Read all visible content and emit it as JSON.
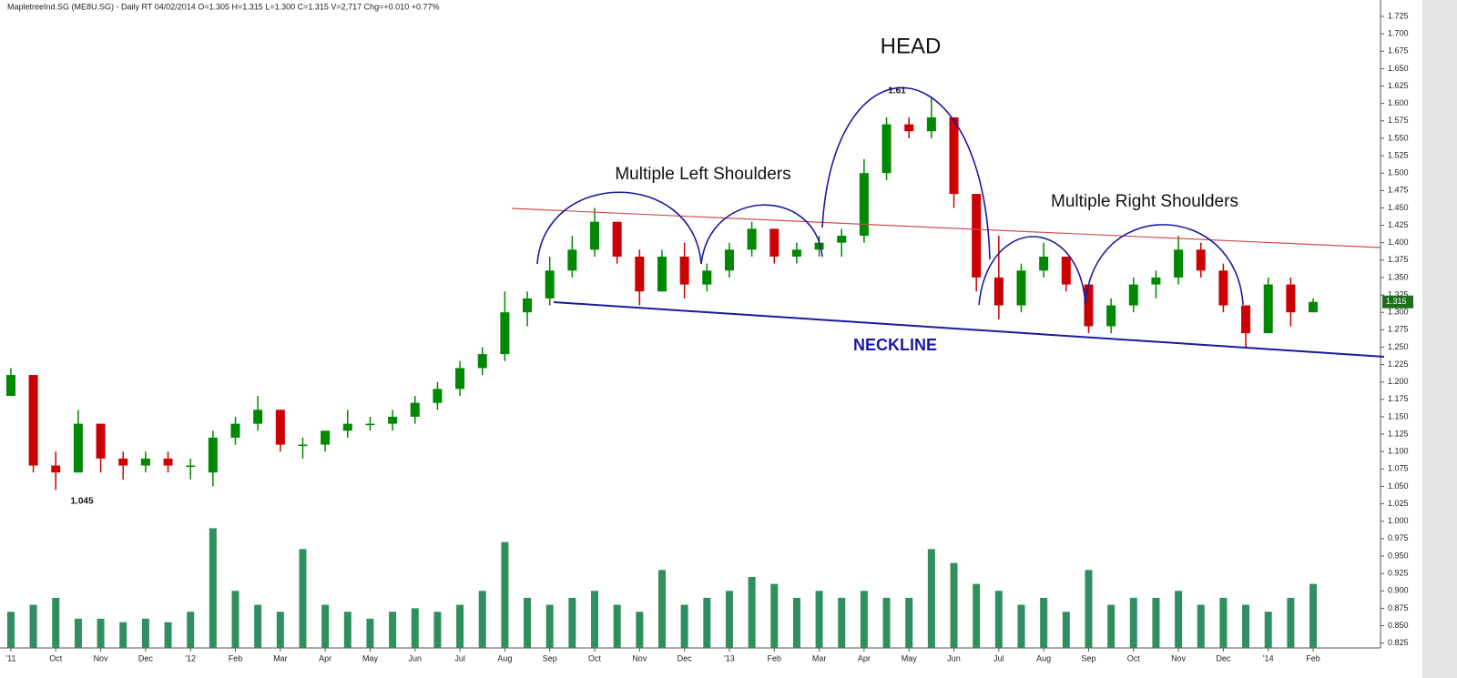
{
  "chart_data": {
    "type": "candlestick",
    "title": "MapletreeInd.SG (ME8U.SG) - Daily RT  04/02/2014   O=1.305   H=1.315   L=1.300   C=1.315   V=2,717   Chg=+0.010   +0.77%",
    "x": [
      0,
      0.5,
      1,
      1.5,
      2,
      2.5,
      3,
      3.5,
      4,
      4.5,
      5,
      5.5,
      6,
      6.5,
      7,
      7.5,
      8,
      8.5,
      9,
      9.5,
      10,
      10.5,
      11,
      11.5,
      12,
      12.5,
      13,
      13.5,
      14,
      14.5,
      15,
      15.5,
      16,
      16.5,
      17,
      17.5,
      18,
      18.5,
      19,
      19.5,
      20,
      20.5,
      21,
      21.5,
      22,
      22.5,
      23,
      23.5,
      24,
      24.5,
      25,
      25.5,
      26,
      26.5,
      27,
      27.5,
      28,
      28.5,
      29
    ],
    "open": [
      1.18,
      1.21,
      1.08,
      1.07,
      1.14,
      1.09,
      1.08,
      1.09,
      1.08,
      1.07,
      1.12,
      1.14,
      1.16,
      1.11,
      1.11,
      1.13,
      1.14,
      1.14,
      1.15,
      1.17,
      1.19,
      1.22,
      1.24,
      1.3,
      1.32,
      1.36,
      1.39,
      1.43,
      1.38,
      1.33,
      1.38,
      1.34,
      1.36,
      1.39,
      1.42,
      1.38,
      1.39,
      1.4,
      1.41,
      1.5,
      1.57,
      1.56,
      1.58,
      1.47,
      1.35,
      1.31,
      1.36,
      1.38,
      1.34,
      1.28,
      1.31,
      1.34,
      1.35,
      1.39,
      1.36,
      1.31,
      1.27,
      1.34,
      1.3
    ],
    "high": [
      1.22,
      1.21,
      1.1,
      1.16,
      1.14,
      1.1,
      1.1,
      1.1,
      1.09,
      1.13,
      1.15,
      1.18,
      1.16,
      1.12,
      1.13,
      1.16,
      1.15,
      1.16,
      1.18,
      1.2,
      1.23,
      1.25,
      1.33,
      1.33,
      1.38,
      1.41,
      1.45,
      1.43,
      1.39,
      1.39,
      1.4,
      1.37,
      1.4,
      1.43,
      1.42,
      1.4,
      1.41,
      1.42,
      1.52,
      1.58,
      1.58,
      1.61,
      1.58,
      1.47,
      1.41,
      1.37,
      1.4,
      1.38,
      1.34,
      1.32,
      1.35,
      1.36,
      1.41,
      1.4,
      1.37,
      1.31,
      1.35,
      1.35,
      1.32
    ],
    "low": [
      1.18,
      1.07,
      1.045,
      1.07,
      1.07,
      1.06,
      1.07,
      1.07,
      1.06,
      1.05,
      1.11,
      1.13,
      1.1,
      1.09,
      1.1,
      1.12,
      1.13,
      1.13,
      1.14,
      1.16,
      1.18,
      1.21,
      1.23,
      1.28,
      1.31,
      1.35,
      1.38,
      1.37,
      1.31,
      1.33,
      1.32,
      1.33,
      1.35,
      1.38,
      1.37,
      1.37,
      1.38,
      1.38,
      1.4,
      1.49,
      1.55,
      1.55,
      1.45,
      1.33,
      1.29,
      1.3,
      1.35,
      1.33,
      1.27,
      1.27,
      1.3,
      1.32,
      1.34,
      1.35,
      1.3,
      1.25,
      1.27,
      1.28,
      1.3
    ],
    "close": [
      1.21,
      1.08,
      1.07,
      1.14,
      1.09,
      1.08,
      1.09,
      1.08,
      1.08,
      1.12,
      1.14,
      1.16,
      1.11,
      1.11,
      1.13,
      1.14,
      1.14,
      1.15,
      1.17,
      1.19,
      1.22,
      1.24,
      1.3,
      1.32,
      1.36,
      1.39,
      1.43,
      1.38,
      1.33,
      1.38,
      1.34,
      1.36,
      1.39,
      1.42,
      1.38,
      1.39,
      1.4,
      1.41,
      1.5,
      1.57,
      1.56,
      1.58,
      1.47,
      1.35,
      1.31,
      1.36,
      1.38,
      1.34,
      1.28,
      1.31,
      1.34,
      1.35,
      1.39,
      1.36,
      1.31,
      1.27,
      1.34,
      1.3,
      1.315
    ],
    "up_color": "#008800",
    "down_color": "#cc0000",
    "volume": {
      "color": "#2f8f5f",
      "values": [
        0.87,
        0.88,
        0.89,
        0.86,
        0.86,
        0.855,
        0.86,
        0.855,
        0.87,
        0.99,
        0.9,
        0.88,
        0.87,
        0.96,
        0.88,
        0.87,
        0.86,
        0.87,
        0.875,
        0.87,
        0.88,
        0.9,
        0.97,
        0.89,
        0.88,
        0.89,
        0.9,
        0.88,
        0.87,
        0.93,
        0.88,
        0.89,
        0.9,
        0.92,
        0.91,
        0.89,
        0.9,
        0.89,
        0.9,
        0.89,
        0.89,
        0.96,
        0.94,
        0.91,
        0.9,
        0.88,
        0.89,
        0.87,
        0.93,
        0.88,
        0.89,
        0.89,
        0.9,
        0.88,
        0.89,
        0.88,
        0.87,
        0.89,
        0.91
      ]
    },
    "last_price": 1.315,
    "last_price_color": "#1e6e1e",
    "xlim": [
      -0.08,
      30.5
    ],
    "xticks": [
      {
        "value": 0,
        "label": "'11"
      },
      {
        "value": 1,
        "label": "Oct"
      },
      {
        "value": 2,
        "label": "Nov"
      },
      {
        "value": 3,
        "label": "Dec"
      },
      {
        "value": 4,
        "label": "'12"
      },
      {
        "value": 5,
        "label": "Feb"
      },
      {
        "value": 6,
        "label": "Mar"
      },
      {
        "value": 7,
        "label": "Apr"
      },
      {
        "value": 8,
        "label": "May"
      },
      {
        "value": 9,
        "label": "Jun"
      },
      {
        "value": 10,
        "label": "Jul"
      },
      {
        "value": 11,
        "label": "Aug"
      },
      {
        "value": 12,
        "label": "Sep"
      },
      {
        "value": 13,
        "label": "Oct"
      },
      {
        "value": 14,
        "label": "Nov"
      },
      {
        "value": 15,
        "label": "Dec"
      },
      {
        "value": 16,
        "label": "'13"
      },
      {
        "value": 17,
        "label": "Feb"
      },
      {
        "value": 18,
        "label": "Mar"
      },
      {
        "value": 19,
        "label": "Apr"
      },
      {
        "value": 20,
        "label": "May"
      },
      {
        "value": 21,
        "label": "Jun"
      },
      {
        "value": 22,
        "label": "Jul"
      },
      {
        "value": 23,
        "label": "Aug"
      },
      {
        "value": 24,
        "label": "Sep"
      },
      {
        "value": 25,
        "label": "Oct"
      },
      {
        "value": 26,
        "label": "Nov"
      },
      {
        "value": 27,
        "label": "Dec"
      },
      {
        "value": 28,
        "label": "'14"
      },
      {
        "value": 29,
        "label": "Feb"
      }
    ],
    "ylim": [
      0.818,
      1.742
    ],
    "yticks": [
      1.725,
      {
        "value": 1.7,
        "label": "1.700"
      },
      1.675,
      {
        "value": 1.65,
        "label": "1.650"
      },
      1.625,
      {
        "value": 1.6,
        "label": "1.600"
      },
      1.575,
      {
        "value": 1.55,
        "label": "1.550"
      },
      1.525,
      {
        "value": 1.5,
        "label": "1.500"
      },
      1.475,
      {
        "value": 1.45,
        "label": "1.450"
      },
      1.425,
      {
        "value": 1.4,
        "label": "1.400"
      },
      1.375,
      {
        "value": 1.35,
        "label": "1.350"
      },
      1.325,
      {
        "value": 1.3,
        "label": "1.300"
      },
      1.275,
      {
        "value": 1.25,
        "label": "1.250"
      },
      1.225,
      {
        "value": 1.2,
        "label": "1.200"
      },
      1.175,
      {
        "value": 1.15,
        "label": "1.150"
      },
      1.125,
      {
        "value": 1.1,
        "label": "1.100"
      },
      1.075,
      {
        "value": 1.05,
        "label": "1.050"
      },
      1.025,
      {
        "value": 1,
        "label": "1.000"
      },
      0.975,
      {
        "value": 0.95,
        "label": "0.950"
      },
      0.925,
      {
        "value": 0.9,
        "label": "0.900"
      },
      0.875,
      {
        "value": 0.85,
        "label": "0.850"
      },
      0.825
    ],
    "annotations": {
      "head": "HEAD",
      "left_shoulders": "Multiple Left Shoulders",
      "right_shoulders": "Multiple Right Shoulders",
      "neckline": "NECKLINE",
      "high": 1.61,
      "low": 1.045
    }
  }
}
